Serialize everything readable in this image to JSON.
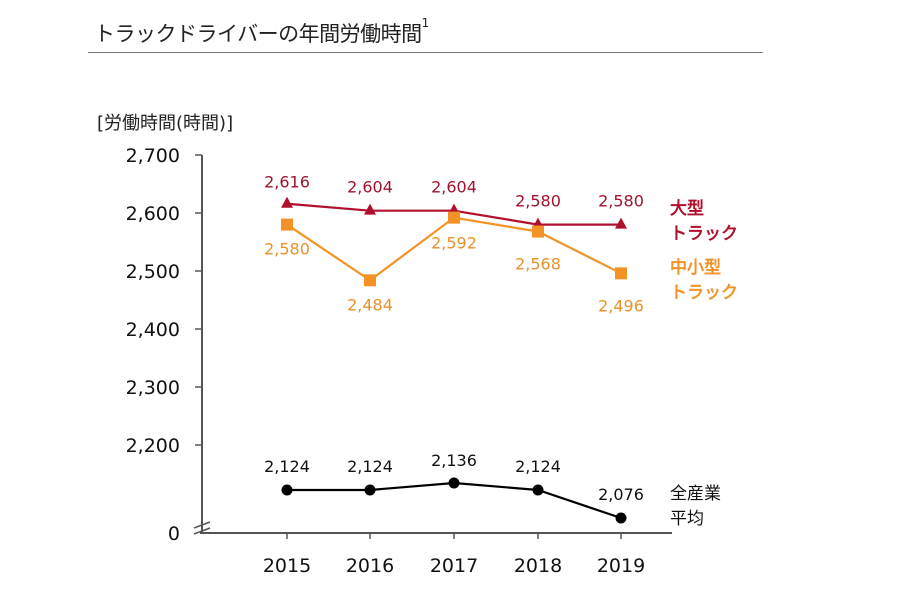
{
  "header": {
    "title": "トラックドライバーの年間労働時間",
    "footnote_mark": "1"
  },
  "colors": {
    "large_truck": "#b0102c",
    "small_truck": "#f39325",
    "all_industry": "#000000",
    "axis": "#555555"
  },
  "chart_data": {
    "type": "line",
    "title": "トラックドライバーの年間労働時間",
    "ylabel": "[労働時間(時間)]",
    "xlabel": "",
    "categories": [
      "2015",
      "2016",
      "2017",
      "2018",
      "2019"
    ],
    "y_ticks": [
      "2,700",
      "2,600",
      "2,500",
      "2,400",
      "2,300",
      "2,200",
      "0"
    ],
    "y_tick_values": [
      2700,
      2600,
      2500,
      2400,
      2300,
      2200,
      0
    ],
    "ylim": [
      2200,
      2700
    ],
    "axis_break": true,
    "grid": false,
    "legend_placement": "right (inline labels)",
    "series": [
      {
        "name": "大型トラック",
        "legend_lines": [
          "大型",
          "トラック"
        ],
        "marker": "triangle",
        "values": [
          2616,
          2604,
          2604,
          2580,
          2580
        ],
        "labels": [
          "2,616",
          "2,604",
          "2,604",
          "2,580",
          "2,580"
        ]
      },
      {
        "name": "中小型トラック",
        "legend_lines": [
          "中小型",
          "トラック"
        ],
        "marker": "square",
        "values": [
          2580,
          2484,
          2592,
          2568,
          2496
        ],
        "labels": [
          "2,580",
          "2,484",
          "2,592",
          "2,568",
          "2,496"
        ]
      },
      {
        "name": "全産業平均",
        "legend_lines": [
          "全産業",
          "平均"
        ],
        "marker": "circle",
        "values": [
          2124,
          2124,
          2136,
          2124,
          2076
        ],
        "labels": [
          "2,124",
          "2,124",
          "2,136",
          "2,124",
          "2,076"
        ]
      }
    ]
  }
}
